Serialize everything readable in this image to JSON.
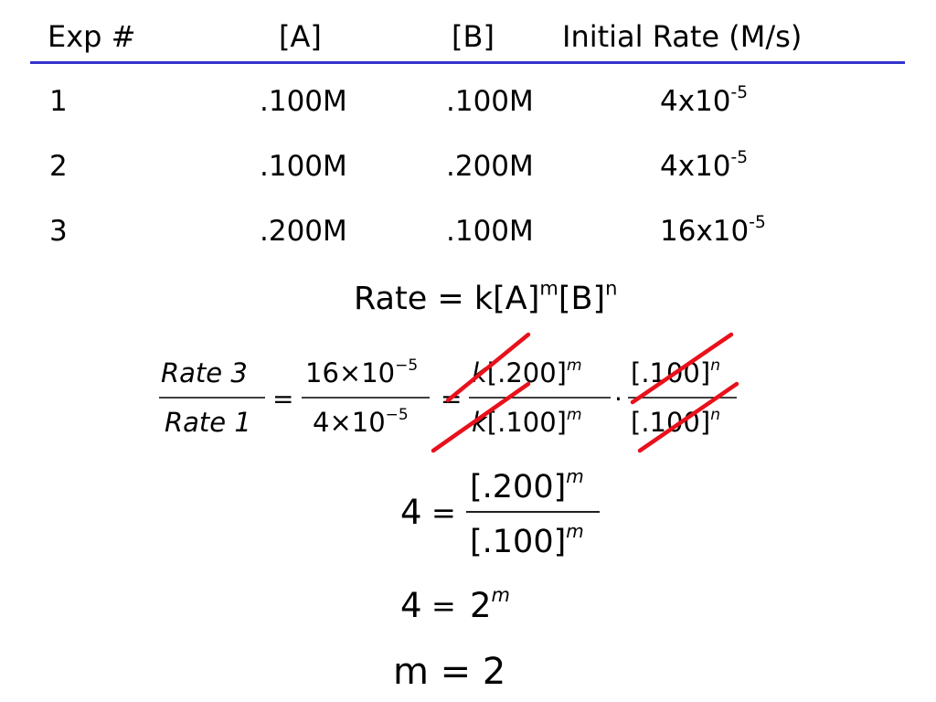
{
  "colors": {
    "rule": "#3333cc",
    "strike": "#e8111b"
  },
  "table": {
    "headers": [
      "Exp #",
      "[A]",
      "[B]",
      "Initial Rate (M/s)"
    ],
    "rows": [
      {
        "exp": "1",
        "a": ".100M",
        "b": ".100M",
        "rate_mantissa": "4x10",
        "rate_exp": "-5"
      },
      {
        "exp": "2",
        "a": ".100M",
        "b": ".200M",
        "rate_mantissa": "4x10",
        "rate_exp": "-5"
      },
      {
        "exp": "3",
        "a": ".200M",
        "b": ".100M",
        "rate_mantissa": "16x10",
        "rate_exp": "-5"
      }
    ]
  },
  "rate_law": {
    "prefix": "Rate = k[A]",
    "m": "m",
    "mid": "[B]",
    "n": "n"
  },
  "equation1": {
    "left_num": "Rate 3",
    "left_den": "Rate 1",
    "eq": "=",
    "mid_num_base": "16×10",
    "mid_num_exp": "−5",
    "mid_den_base": "4×10",
    "mid_den_exp": "−5",
    "k": "k",
    "r_num": "[.200]",
    "r_den": "[.100]",
    "m": "m",
    "dot": "·",
    "b_num": "[.100]",
    "b_den": "[.100]",
    "n": "n"
  },
  "equation2": {
    "lhs": "4",
    "eq": "=",
    "num": "[.200]",
    "den": "[.100]",
    "m": "m"
  },
  "equation3": {
    "lhs": "4",
    "eq": "=",
    "base": "2",
    "m": "m"
  },
  "result": "m = 2"
}
